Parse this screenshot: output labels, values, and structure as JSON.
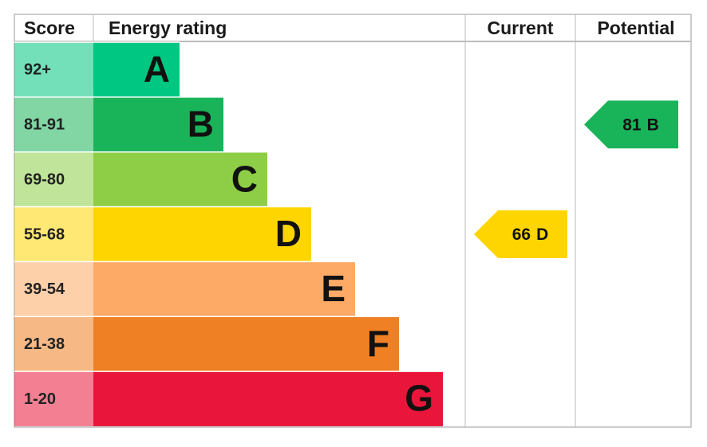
{
  "headers": [
    "Score",
    "Energy rating",
    "Current",
    "Potential"
  ],
  "bands": [
    {
      "score": "92+",
      "letter": "A",
      "color": "#00c781"
    },
    {
      "score": "81-91",
      "letter": "B",
      "color": "#19b459"
    },
    {
      "score": "69-80",
      "letter": "C",
      "color": "#8dce46"
    },
    {
      "score": "55-68",
      "letter": "D",
      "color": "#ffd500"
    },
    {
      "score": "39-54",
      "letter": "E",
      "color": "#fcaa65"
    },
    {
      "score": "21-38",
      "letter": "F",
      "color": "#ef8023"
    },
    {
      "score": "1-20",
      "letter": "G",
      "color": "#e9153b"
    }
  ],
  "current": {
    "score": 66,
    "rating": "D"
  },
  "potential": {
    "score": 81,
    "rating": "B"
  }
}
